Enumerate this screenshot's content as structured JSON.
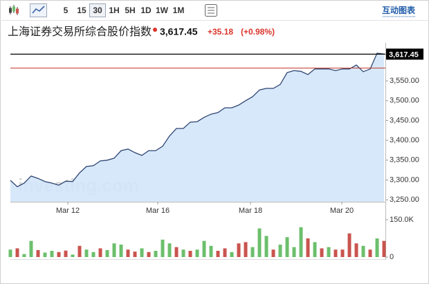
{
  "toolbar": {
    "intervals": [
      "5",
      "15",
      "30",
      "1H",
      "5H",
      "1D",
      "1W",
      "1M"
    ],
    "selected_interval": 2,
    "link": "互动图表"
  },
  "header": {
    "name": "上海证券交易所综合股价指数",
    "price": "3,617.45",
    "change": "+35.18",
    "change_percent": "(+0.98%)"
  },
  "chart_data": [
    {
      "type": "area",
      "watermark": "investing.com",
      "color": "#2e4470",
      "fill": "#d3e6fa",
      "x": [
        0,
        1,
        2,
        3,
        4,
        5,
        6,
        7,
        8,
        9,
        10,
        11,
        12,
        13,
        14,
        15,
        16,
        17,
        18,
        19,
        20,
        21,
        22,
        23,
        24,
        25,
        26,
        27,
        28,
        29,
        30,
        31,
        32,
        33,
        34,
        35,
        36,
        37,
        38,
        39,
        40,
        41,
        42,
        43,
        44,
        45,
        46,
        47,
        48,
        49,
        50,
        51,
        52,
        53,
        54
      ],
      "values": [
        3299,
        3283,
        3292,
        3310,
        3304,
        3296,
        3292,
        3287,
        3297,
        3296,
        3318,
        3334,
        3336,
        3348,
        3350,
        3355,
        3374,
        3378,
        3369,
        3362,
        3374,
        3374,
        3385,
        3411,
        3430,
        3430,
        3446,
        3447,
        3458,
        3466,
        3470,
        3482,
        3482,
        3489,
        3500,
        3510,
        3527,
        3531,
        3531,
        3541,
        3571,
        3576,
        3574,
        3566,
        3580,
        3580,
        3580,
        3576,
        3580,
        3580,
        3590,
        3573,
        3580,
        3620,
        3617.45
      ],
      "xlim": [
        0,
        54.2
      ],
      "ylim": [
        3245,
        3632
      ],
      "xticks": [
        {
          "value": 8.3,
          "label": "Mar 12"
        },
        {
          "value": 21.3,
          "label": "Mar 16"
        },
        {
          "value": 34.7,
          "label": "Mar 18"
        },
        {
          "value": 47.9,
          "label": "Mar 20"
        }
      ],
      "yticks": [
        {
          "value": 3250,
          "label": "3,250.00"
        },
        {
          "value": 3300,
          "label": "3,300.00"
        },
        {
          "value": 3350,
          "label": "3,350.00"
        },
        {
          "value": 3400,
          "label": "3,400.00"
        },
        {
          "value": 3450,
          "label": "3,450.00"
        },
        {
          "value": 3500,
          "label": "3,500.00"
        },
        {
          "value": 3550,
          "label": "3,550.00"
        }
      ],
      "price_line": {
        "value": 3617.45,
        "label": "3,617.45",
        "color": "#000000"
      },
      "reference_line": {
        "value": 3582.27,
        "color": "#c0392b"
      },
      "grid": false
    },
    {
      "type": "bar",
      "x": [
        0,
        1,
        2,
        3,
        4,
        5,
        6,
        7,
        8,
        9,
        10,
        11,
        12,
        13,
        14,
        15,
        16,
        17,
        18,
        19,
        20,
        21,
        22,
        23,
        24,
        25,
        26,
        27,
        28,
        29,
        30,
        31,
        32,
        33,
        34,
        35,
        36,
        37,
        38,
        39,
        40,
        41,
        42,
        43,
        44,
        45,
        46,
        47,
        48,
        49,
        50,
        51,
        52,
        53,
        54
      ],
      "values": [
        30000,
        35000,
        12000,
        65000,
        28000,
        18000,
        25000,
        20000,
        26000,
        10000,
        45000,
        30000,
        20000,
        35000,
        28000,
        55000,
        50000,
        30000,
        22000,
        35000,
        20000,
        25000,
        70000,
        55000,
        40000,
        30000,
        25000,
        30000,
        65000,
        45000,
        25000,
        35000,
        20000,
        55000,
        60000,
        40000,
        115000,
        85000,
        30000,
        50000,
        80000,
        40000,
        120000,
        75000,
        60000,
        35000,
        40000,
        30000,
        30000,
        95000,
        55000,
        45000,
        30000,
        75000,
        65000
      ],
      "colors": [
        "#6cbf6c",
        "#c9544f",
        "#6cbf6c",
        "#6cbf6c",
        "#c9544f",
        "#6cbf6c",
        "#6cbf6c",
        "#c9544f",
        "#c9544f",
        "#6cbf6c",
        "#c9544f",
        "#6cbf6c",
        "#6cbf6c",
        "#c9544f",
        "#6cbf6c",
        "#6cbf6c",
        "#6cbf6c",
        "#c9544f",
        "#c9544f",
        "#6cbf6c",
        "#c9544f",
        "#6cbf6c",
        "#6cbf6c",
        "#6cbf6c",
        "#c9544f",
        "#6cbf6c",
        "#c9544f",
        "#6cbf6c",
        "#6cbf6c",
        "#6cbf6c",
        "#c9544f",
        "#c9544f",
        "#6cbf6c",
        "#c9544f",
        "#c9544f",
        "#6cbf6c",
        "#6cbf6c",
        "#6cbf6c",
        "#c9544f",
        "#6cbf6c",
        "#6cbf6c",
        "#6cbf6c",
        "#6cbf6c",
        "#c9544f",
        "#6cbf6c",
        "#c9544f",
        "#6cbf6c",
        "#c9544f",
        "#c9544f",
        "#c9544f",
        "#c9544f",
        "#6cbf6c",
        "#c9544f",
        "#6cbf6c",
        "#c9544f"
      ],
      "xlim": [
        0,
        54.2
      ],
      "ylim": [
        0,
        150000
      ],
      "yticks": [
        0,
        {
          "value": 150000,
          "label": "150.0K"
        }
      ]
    }
  ]
}
